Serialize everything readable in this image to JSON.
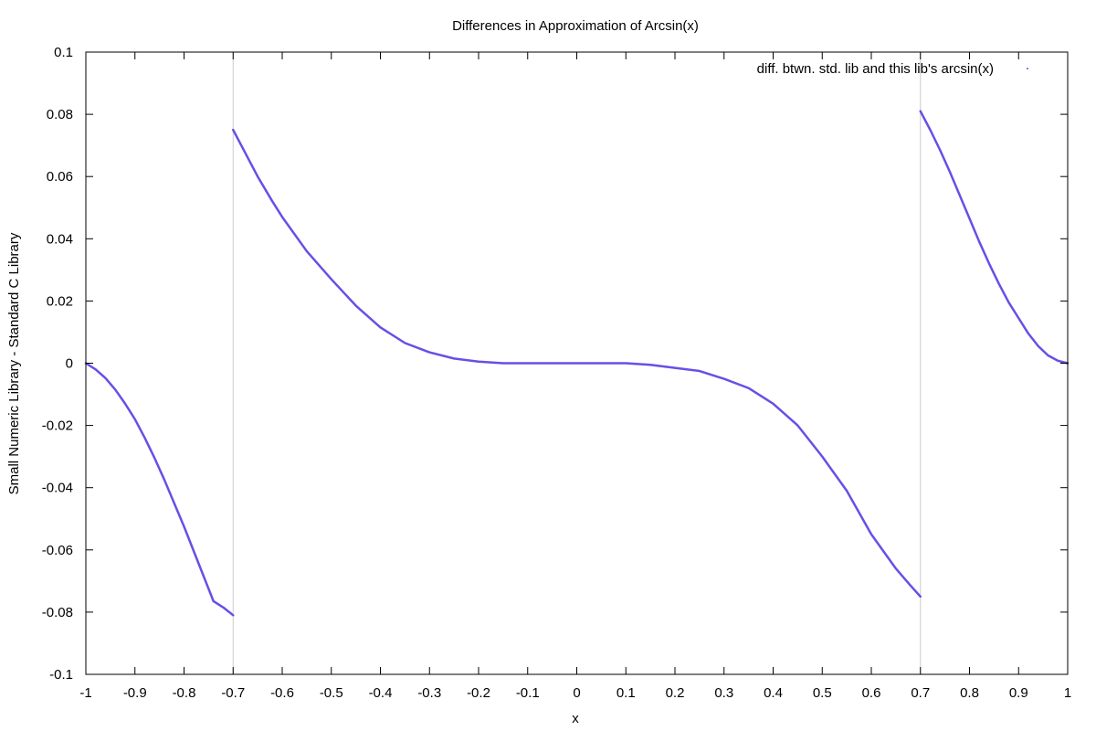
{
  "chart_data": {
    "type": "scatter",
    "title": "Differences in Approximation of Arcsin(x)",
    "xlabel": "x",
    "ylabel": "Small Numeric Library - Standard C Library",
    "xlim": [
      -1,
      1
    ],
    "ylim": [
      -0.1,
      0.1
    ],
    "x_ticks": [
      -1,
      -0.9,
      -0.8,
      -0.7,
      -0.6,
      -0.5,
      -0.4,
      -0.3,
      -0.2,
      -0.1,
      0,
      0.1,
      0.2,
      0.3,
      0.4,
      0.5,
      0.6,
      0.7,
      0.8,
      0.9,
      1
    ],
    "x_tick_labels": [
      "-1",
      "-0.9",
      "-0.8",
      "-0.7",
      "-0.6",
      "-0.5",
      "-0.4",
      "-0.3",
      "-0.2",
      "-0.1",
      "0",
      "0.1",
      "0.2",
      "0.3",
      "0.4",
      "0.5",
      "0.6",
      "0.7",
      "0.8",
      "0.9",
      "1"
    ],
    "y_ticks": [
      0.1,
      0.08,
      0.06,
      0.04,
      0.02,
      0,
      -0.02,
      -0.04,
      -0.06,
      -0.08,
      -0.1
    ],
    "y_tick_labels": [
      "0.1",
      "0.08",
      "0.06",
      "0.04",
      "0.02",
      "0",
      "-0.02",
      "-0.04",
      "-0.06",
      "-0.08",
      "-0.1"
    ],
    "vertical_reference_lines": [
      -0.7,
      0.7
    ],
    "grid": false,
    "legend_position": "top-right",
    "series": [
      {
        "name": "diff. btwn. std. lib and this lib's arcsin(x)",
        "color": "#6a4ee6",
        "segments": [
          {
            "x": [
              -1.0,
              -0.98,
              -0.96,
              -0.94,
              -0.92,
              -0.9,
              -0.88,
              -0.86,
              -0.84,
              -0.82,
              -0.8,
              -0.78,
              -0.76,
              -0.74,
              -0.72,
              -0.7
            ],
            "y": [
              0.0,
              -0.002,
              -0.0048,
              -0.0085,
              -0.013,
              -0.018,
              -0.024,
              -0.0305,
              -0.0375,
              -0.045,
              -0.0525,
              -0.0605,
              -0.0685,
              -0.0765,
              -0.0785,
              -0.081
            ]
          },
          {
            "x": [
              -0.7,
              -0.68,
              -0.65,
              -0.62,
              -0.6,
              -0.55,
              -0.5,
              -0.45,
              -0.4,
              -0.35,
              -0.3,
              -0.25,
              -0.2,
              -0.15,
              -0.1,
              -0.05,
              0.0,
              0.05,
              0.1,
              0.15,
              0.2,
              0.25,
              0.3,
              0.35,
              0.4,
              0.45,
              0.5,
              0.55,
              0.6,
              0.65,
              0.68,
              0.7
            ],
            "y": [
              0.075,
              0.069,
              0.06,
              0.052,
              0.047,
              0.036,
              0.027,
              0.0185,
              0.0115,
              0.0065,
              0.0035,
              0.0015,
              0.0005,
              0.0,
              0.0,
              0.0,
              0.0,
              0.0,
              0.0,
              -0.0005,
              -0.0015,
              -0.0025,
              -0.005,
              -0.008,
              -0.013,
              -0.02,
              -0.03,
              -0.041,
              -0.055,
              -0.066,
              -0.0715,
              -0.075
            ]
          },
          {
            "x": [
              0.7,
              0.72,
              0.74,
              0.76,
              0.78,
              0.8,
              0.82,
              0.84,
              0.86,
              0.88,
              0.9,
              0.92,
              0.94,
              0.96,
              0.98,
              1.0
            ],
            "y": [
              0.081,
              0.075,
              0.0685,
              0.0615,
              0.054,
              0.0465,
              0.039,
              0.032,
              0.0255,
              0.0195,
              0.0145,
              0.0095,
              0.0055,
              0.0025,
              0.0008,
              0.0
            ]
          }
        ]
      }
    ]
  }
}
